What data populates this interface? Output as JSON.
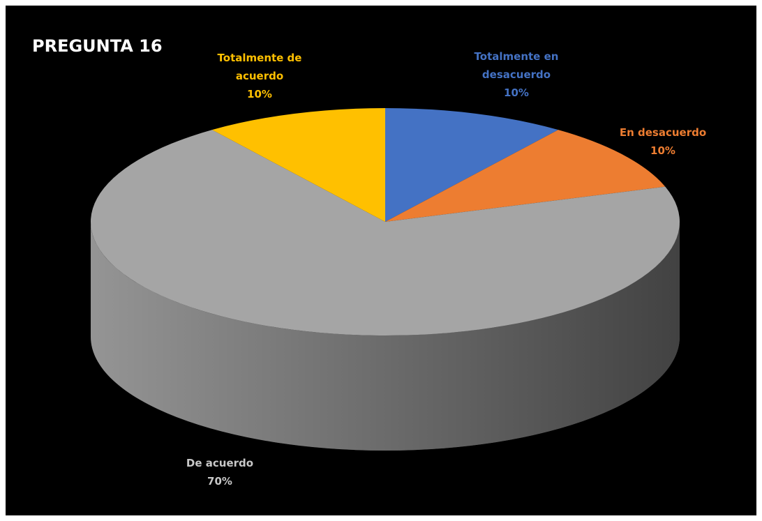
{
  "chart_data": {
    "type": "pie",
    "title": "PREGUNTA 16",
    "categories": [
      "Totalmente en desacuerdo",
      "En desacuerdo",
      "De acuerdo",
      "Totalmente de acuerdo"
    ],
    "values": [
      10,
      10,
      70,
      10
    ],
    "value_labels": [
      "10%",
      "10%",
      "70%",
      "10%"
    ],
    "colors": [
      "#4472c4",
      "#ed7d31",
      "#a5a5a5",
      "#ffc000"
    ]
  }
}
